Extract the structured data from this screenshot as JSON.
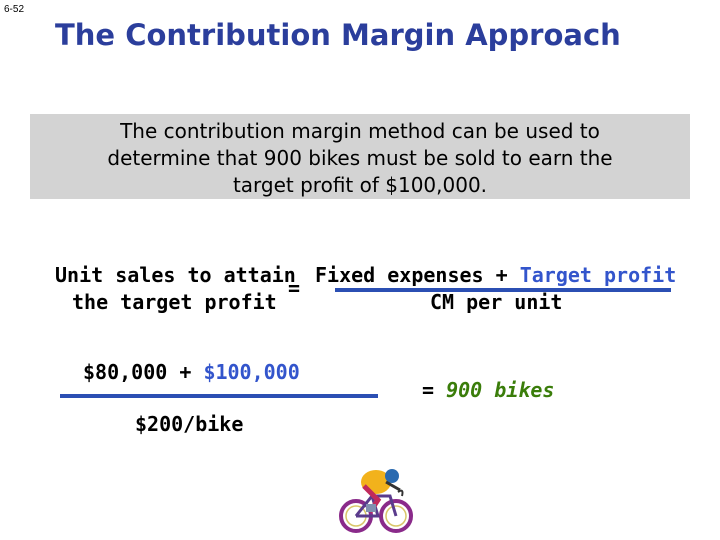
{
  "slide_number": "6-52",
  "title": "The Contribution Margin Approach",
  "callout": {
    "lines": [
      "The contribution margin method can be used to",
      "determine that 900 bikes must be sold to earn the",
      "target profit of $100,000."
    ]
  },
  "formula": {
    "lhs_line1": "Unit sales to attain",
    "lhs_line2": "the target profit",
    "equals": "=",
    "numerator_fixed": "Fixed expenses",
    "numerator_plus": "+",
    "numerator_target": "Target profit",
    "denominator": "CM per unit"
  },
  "calculation": {
    "fixed": "$80,000",
    "plus": "+",
    "target": "$100,000",
    "denominator": "$200/bike"
  },
  "result": {
    "equals": "=",
    "value": "900 bikes"
  },
  "colors": {
    "title": "#2b3e9c",
    "accent_blue": "#3355cc",
    "result_green": "#3a7d0a",
    "callout_bg": "#d3d3d3"
  }
}
